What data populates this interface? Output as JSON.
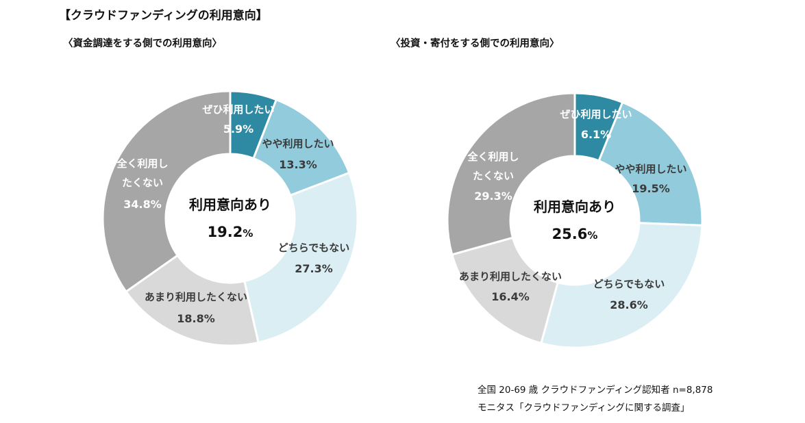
{
  "title": "【クラウドファンディングの利用意向】",
  "notes": {
    "line1": "全国 20-69 歳  クラウドファンディング認知者  n=8,878",
    "line2": "モニタス「クラウドファンディングに関する調査」"
  },
  "chart_data": [
    {
      "type": "pie",
      "variant": "donut",
      "title": "〈資金調達をする側での利用意向〉",
      "center_label": "利用意向あり",
      "center_value": "19.2",
      "center_unit": "%",
      "slices": [
        {
          "label": "ぜひ利用したい",
          "value": 5.9,
          "color": "#2e8aa3",
          "text_color": "#ffffff"
        },
        {
          "label": "やや利用したい",
          "value": 13.3,
          "color": "#92ccdc",
          "text_color": "#3a3a3a"
        },
        {
          "label": "どちらでもない",
          "value": 27.3,
          "color": "#daeef4",
          "text_color": "#3a3a3a"
        },
        {
          "label": "あまり利用したくない",
          "value": 18.8,
          "color": "#d9d9d9",
          "text_color": "#3a3a3a"
        },
        {
          "label": "全く利用し\nたくない",
          "value": 34.8,
          "color": "#a6a6a6",
          "text_color": "#ffffff"
        }
      ]
    },
    {
      "type": "pie",
      "variant": "donut",
      "title": "〈投資・寄付をする側での利用意向〉",
      "center_label": "利用意向あり",
      "center_value": "25.6",
      "center_unit": "%",
      "slices": [
        {
          "label": "ぜひ利用したい",
          "value": 6.1,
          "color": "#2e8aa3",
          "text_color": "#ffffff"
        },
        {
          "label": "やや利用したい",
          "value": 19.5,
          "color": "#92ccdc",
          "text_color": "#3a3a3a"
        },
        {
          "label": "どちらでもない",
          "value": 28.6,
          "color": "#daeef4",
          "text_color": "#3a3a3a"
        },
        {
          "label": "あまり利用したくない",
          "value": 16.4,
          "color": "#d9d9d9",
          "text_color": "#3a3a3a"
        },
        {
          "label": "全く利用し\nたくない",
          "value": 29.3,
          "color": "#a6a6a6",
          "text_color": "#ffffff"
        }
      ]
    }
  ]
}
